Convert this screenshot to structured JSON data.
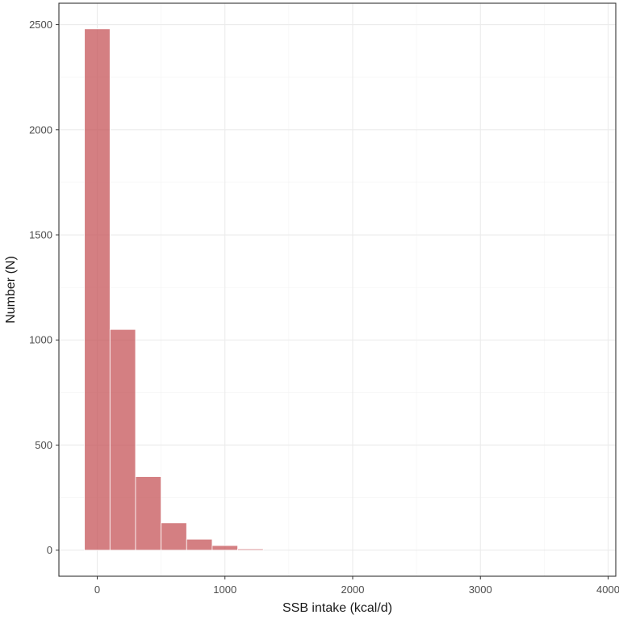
{
  "chart_data": {
    "type": "bar",
    "subtype": "histogram",
    "title": "",
    "xlabel": "SSB intake (kcal/d)",
    "ylabel": "Number (N)",
    "xlim": [
      -300,
      4060
    ],
    "ylim": [
      -124,
      2602
    ],
    "x_ticks": [
      0,
      1000,
      2000,
      3000,
      4000
    ],
    "y_ticks": [
      0,
      500,
      1000,
      1500,
      2000,
      2500
    ],
    "grid": true,
    "bin_width": 200,
    "bins": [
      {
        "x_start": -100,
        "x_end": 100,
        "count": 2480
      },
      {
        "x_start": 100,
        "x_end": 300,
        "count": 1050
      },
      {
        "x_start": 300,
        "x_end": 500,
        "count": 350
      },
      {
        "x_start": 500,
        "x_end": 700,
        "count": 130
      },
      {
        "x_start": 700,
        "x_end": 900,
        "count": 52
      },
      {
        "x_start": 900,
        "x_end": 1100,
        "count": 22
      },
      {
        "x_start": 1100,
        "x_end": 1300,
        "count": 6
      }
    ],
    "colors": {
      "bar_fill": "#c44e52",
      "bar_opacity": 0.72
    }
  }
}
